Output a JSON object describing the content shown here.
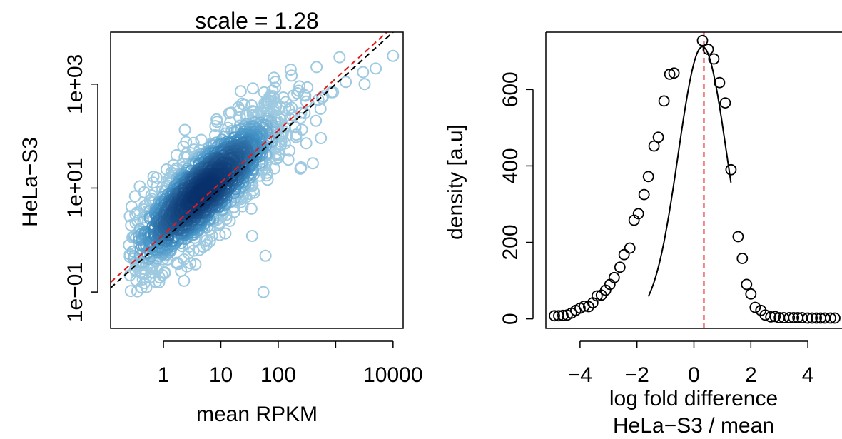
{
  "colors": {
    "scatter_light": "#9ecae1",
    "scatter_mid": "#4292c6",
    "scatter_dark": "#08306b",
    "identity_line": "#000000",
    "fit_line": "#e31a1c",
    "vline": "#e31a1c"
  },
  "chart_data": [
    {
      "type": "scatter",
      "title": "scale = 1.28",
      "xlabel": "mean RPKM",
      "ylabel": "HeLa−S3",
      "x_scale": "log10",
      "y_scale": "log10",
      "xlim": [
        0.12,
        15000
      ],
      "ylim": [
        0.02,
        10000
      ],
      "x_ticks": [
        {
          "value": 0.1,
          "label": ""
        },
        {
          "value": 1,
          "label": "1"
        },
        {
          "value": 10,
          "label": "10"
        },
        {
          "value": 100,
          "label": "100"
        },
        {
          "value": 1000,
          "label": ""
        },
        {
          "value": 10000,
          "label": "10000"
        }
      ],
      "y_ticks": [
        {
          "value": 0.1,
          "label": "1e−01"
        },
        {
          "value": 10,
          "label": "1e+01"
        },
        {
          "value": 1000,
          "label": "1e+03"
        }
      ],
      "lines": [
        {
          "kind": "identity",
          "slope": 1,
          "multiplier": 1,
          "dash": "dashed",
          "color": "#000000"
        },
        {
          "kind": "scaled",
          "slope": 1,
          "multiplier": 1.28,
          "dash": "dashed",
          "color": "#e31a1c"
        }
      ],
      "density": {
        "description_none": "",
        "center_log10": [
          0.7,
          0.95
        ],
        "n_points": 1400
      },
      "outliers": [
        {
          "x": 10000,
          "y": 3500
        },
        {
          "x": 5000,
          "y": 2000
        },
        {
          "x": 3200,
          "y": 1000
        },
        {
          "x": 3000,
          "y": 1700
        },
        {
          "x": 1500,
          "y": 1100
        },
        {
          "x": 900,
          "y": 700
        },
        {
          "x": 500,
          "y": 500
        },
        {
          "x": 400,
          "y": 30
        },
        {
          "x": 250,
          "y": 25
        },
        {
          "x": 150,
          "y": 35
        },
        {
          "x": 60,
          "y": 0.5
        },
        {
          "x": 35,
          "y": 1.2
        },
        {
          "x": 55,
          "y": 0.1
        }
      ]
    },
    {
      "type": "scatter",
      "title": "",
      "xlabel": "log fold difference",
      "xlabel2": "HeLa−S3 / mean",
      "ylabel": "density [a.u]",
      "xlim": [
        -5.2,
        5.2
      ],
      "ylim": [
        -25,
        750
      ],
      "x_ticks": [
        -4,
        -2,
        0,
        2,
        4
      ],
      "x_tick_labels": [
        "−4",
        "−2",
        "0",
        "2",
        "4"
      ],
      "y_ticks": [
        0,
        200,
        400,
        600
      ],
      "y_tick_labels": [
        "0",
        "200",
        "400",
        "600"
      ],
      "vline_x": 0.35,
      "points": [
        {
          "x": -4.9,
          "y": 8
        },
        {
          "x": -4.75,
          "y": 8
        },
        {
          "x": -4.6,
          "y": 9
        },
        {
          "x": -4.45,
          "y": 10
        },
        {
          "x": -4.3,
          "y": 15
        },
        {
          "x": -4.15,
          "y": 22
        },
        {
          "x": -4.0,
          "y": 28
        },
        {
          "x": -3.85,
          "y": 33
        },
        {
          "x": -3.7,
          "y": 32
        },
        {
          "x": -3.55,
          "y": 42
        },
        {
          "x": -3.4,
          "y": 60
        },
        {
          "x": -3.25,
          "y": 62
        },
        {
          "x": -3.1,
          "y": 75
        },
        {
          "x": -2.95,
          "y": 90
        },
        {
          "x": -2.8,
          "y": 108
        },
        {
          "x": -2.6,
          "y": 135
        },
        {
          "x": -2.45,
          "y": 168
        },
        {
          "x": -2.25,
          "y": 185
        },
        {
          "x": -2.1,
          "y": 258
        },
        {
          "x": -1.95,
          "y": 275
        },
        {
          "x": -1.75,
          "y": 325
        },
        {
          "x": -1.6,
          "y": 372
        },
        {
          "x": -1.4,
          "y": 452
        },
        {
          "x": -1.25,
          "y": 475
        },
        {
          "x": -1.05,
          "y": 570
        },
        {
          "x": -0.85,
          "y": 640
        },
        {
          "x": -0.7,
          "y": 643
        },
        {
          "x": 0.3,
          "y": 728
        },
        {
          "x": 0.5,
          "y": 705
        },
        {
          "x": 0.7,
          "y": 680
        },
        {
          "x": 0.9,
          "y": 618
        },
        {
          "x": 1.1,
          "y": 565
        },
        {
          "x": 1.3,
          "y": 390
        },
        {
          "x": 1.55,
          "y": 215
        },
        {
          "x": 1.7,
          "y": 158
        },
        {
          "x": 1.85,
          "y": 90
        },
        {
          "x": 2.0,
          "y": 65
        },
        {
          "x": 2.15,
          "y": 30
        },
        {
          "x": 2.35,
          "y": 22
        },
        {
          "x": 2.5,
          "y": 10
        },
        {
          "x": 2.7,
          "y": 5
        },
        {
          "x": 2.85,
          "y": 6
        },
        {
          "x": 3.0,
          "y": 3
        },
        {
          "x": 3.15,
          "y": 3
        },
        {
          "x": 3.35,
          "y": 3
        },
        {
          "x": 3.5,
          "y": 3
        },
        {
          "x": 3.65,
          "y": 3
        },
        {
          "x": 3.8,
          "y": 3
        },
        {
          "x": 4.0,
          "y": 2
        },
        {
          "x": 4.15,
          "y": 2
        },
        {
          "x": 4.3,
          "y": 2
        },
        {
          "x": 4.45,
          "y": 2
        },
        {
          "x": 4.6,
          "y": 2
        },
        {
          "x": 4.8,
          "y": 2
        },
        {
          "x": 4.95,
          "y": 2
        }
      ],
      "fit_curve": {
        "kind": "gaussian",
        "mean": 0.3,
        "amplitude": 712,
        "sd": 0.85,
        "x_from": -1.6,
        "x_to": 1.3
      }
    }
  ]
}
